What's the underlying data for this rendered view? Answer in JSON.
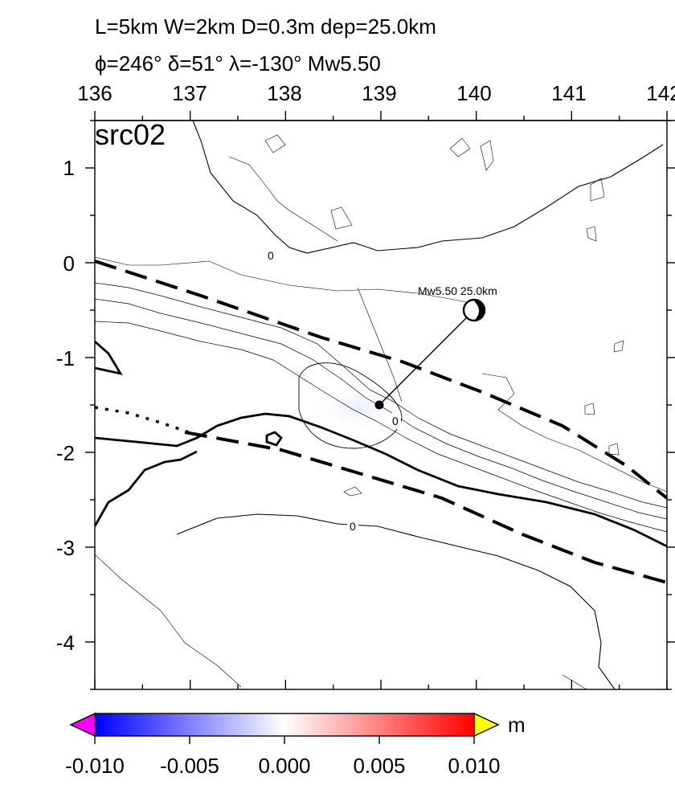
{
  "header": {
    "line1": "L=5km W=2km D=0.3m dep=25.0km",
    "line2": "ϕ=246° δ=51° λ=-130° Mw5.50"
  },
  "map": {
    "panel_label": "src02",
    "x_ticks": [
      "136",
      "137",
      "138",
      "139",
      "140",
      "141",
      "142"
    ],
    "y_ticks": [
      "1",
      "0",
      "-1",
      "-2",
      "-3",
      "-4"
    ],
    "x_range": [
      136,
      142
    ],
    "y_range": [
      -4.5,
      1.5
    ],
    "contour_labels": [
      "0",
      "0",
      "0"
    ],
    "source": {
      "label": "Mw5.50 25.0km",
      "epicenter": [
        139.0,
        -1.5
      ],
      "beachball": [
        140.0,
        -0.5
      ]
    }
  },
  "colorbar": {
    "unit": "m",
    "tick_labels": [
      "-0.010",
      "-0.005",
      "0.000",
      "0.005",
      "0.010"
    ],
    "range": [
      -0.01,
      0.01
    ],
    "colors": {
      "min": "#0000ff",
      "mid": "#ffffff",
      "max": "#ff0000",
      "under": "#ff00ff",
      "over": "#ffff00"
    }
  }
}
